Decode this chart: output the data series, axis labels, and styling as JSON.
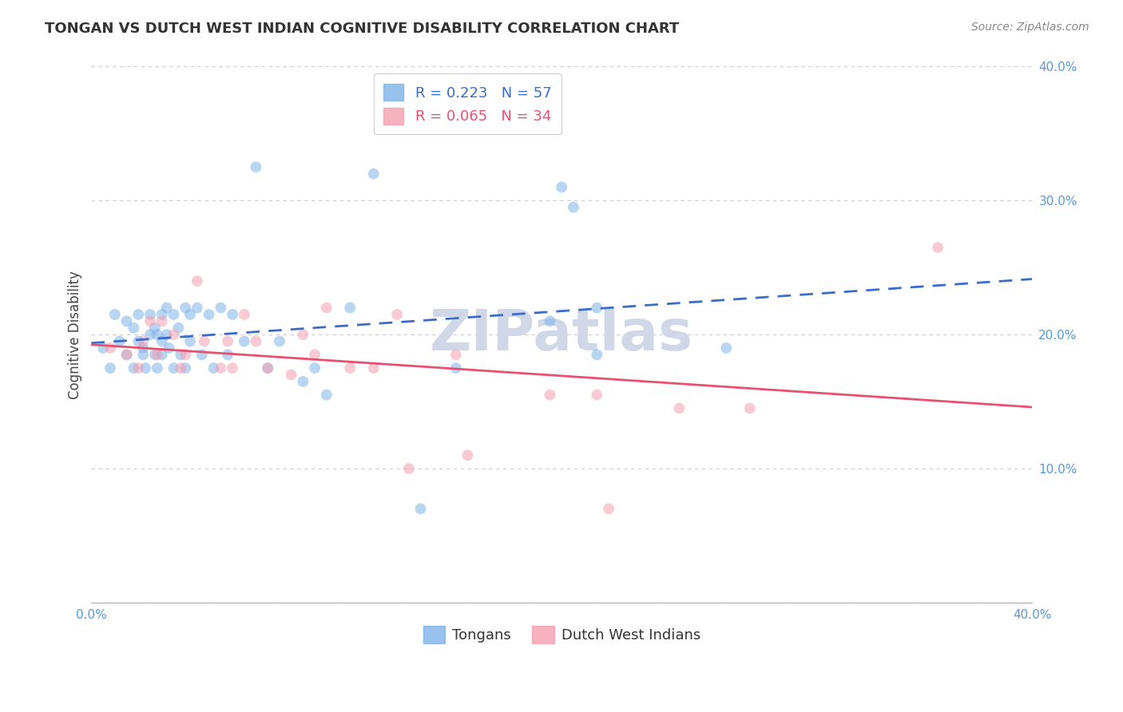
{
  "title": "TONGAN VS DUTCH WEST INDIAN COGNITIVE DISABILITY CORRELATION CHART",
  "source": "Source: ZipAtlas.com",
  "ylabel": "Cognitive Disability",
  "xlim": [
    0.0,
    0.4
  ],
  "ylim": [
    0.0,
    0.4
  ],
  "xticks": [
    0.0,
    0.05,
    0.1,
    0.15,
    0.2,
    0.25,
    0.3,
    0.35,
    0.4
  ],
  "yticks": [
    0.0,
    0.1,
    0.2,
    0.3,
    0.4
  ],
  "grid_color": "#cccccc",
  "background_color": "#ffffff",
  "tongan_color": "#7EB3E8",
  "dutch_color": "#F4A0B0",
  "trendline_tongan_color": "#3A6CC8",
  "trendline_dutch_color": "#E85070",
  "R_tongan": 0.223,
  "N_tongan": 57,
  "R_dutch": 0.065,
  "N_dutch": 34,
  "legend_label_tongan": "Tongans",
  "legend_label_dutch": "Dutch West Indians",
  "marker_size": 100,
  "marker_alpha": 0.55,
  "tongan_x": [
    0.005,
    0.008,
    0.01,
    0.012,
    0.015,
    0.015,
    0.018,
    0.018,
    0.02,
    0.02,
    0.022,
    0.022,
    0.023,
    0.025,
    0.025,
    0.027,
    0.027,
    0.028,
    0.028,
    0.03,
    0.03,
    0.03,
    0.032,
    0.032,
    0.033,
    0.035,
    0.035,
    0.037,
    0.038,
    0.04,
    0.04,
    0.042,
    0.042,
    0.045,
    0.047,
    0.05,
    0.052,
    0.055,
    0.058,
    0.06,
    0.065,
    0.07,
    0.075,
    0.08,
    0.09,
    0.095,
    0.1,
    0.11,
    0.12,
    0.14,
    0.155,
    0.195,
    0.2,
    0.205,
    0.215,
    0.215,
    0.27
  ],
  "tongan_y": [
    0.19,
    0.175,
    0.215,
    0.195,
    0.21,
    0.185,
    0.205,
    0.175,
    0.215,
    0.195,
    0.19,
    0.185,
    0.175,
    0.215,
    0.2,
    0.205,
    0.185,
    0.2,
    0.175,
    0.215,
    0.195,
    0.185,
    0.22,
    0.2,
    0.19,
    0.215,
    0.175,
    0.205,
    0.185,
    0.22,
    0.175,
    0.215,
    0.195,
    0.22,
    0.185,
    0.215,
    0.175,
    0.22,
    0.185,
    0.215,
    0.195,
    0.325,
    0.175,
    0.195,
    0.165,
    0.175,
    0.155,
    0.22,
    0.32,
    0.07,
    0.175,
    0.21,
    0.31,
    0.295,
    0.22,
    0.185,
    0.19
  ],
  "dutch_x": [
    0.008,
    0.015,
    0.02,
    0.022,
    0.025,
    0.028,
    0.03,
    0.035,
    0.038,
    0.04,
    0.045,
    0.048,
    0.055,
    0.058,
    0.06,
    0.065,
    0.07,
    0.075,
    0.085,
    0.09,
    0.095,
    0.1,
    0.11,
    0.12,
    0.13,
    0.135,
    0.155,
    0.16,
    0.195,
    0.215,
    0.22,
    0.25,
    0.28,
    0.36
  ],
  "dutch_y": [
    0.19,
    0.185,
    0.175,
    0.195,
    0.21,
    0.185,
    0.21,
    0.2,
    0.175,
    0.185,
    0.24,
    0.195,
    0.175,
    0.195,
    0.175,
    0.215,
    0.195,
    0.175,
    0.17,
    0.2,
    0.185,
    0.22,
    0.175,
    0.175,
    0.215,
    0.1,
    0.185,
    0.11,
    0.155,
    0.155,
    0.07,
    0.145,
    0.145,
    0.265
  ],
  "watermark": "ZIPatlas",
  "watermark_color": "#d0d8e8",
  "watermark_fontsize": 52,
  "tick_label_color": "#5599dd"
}
